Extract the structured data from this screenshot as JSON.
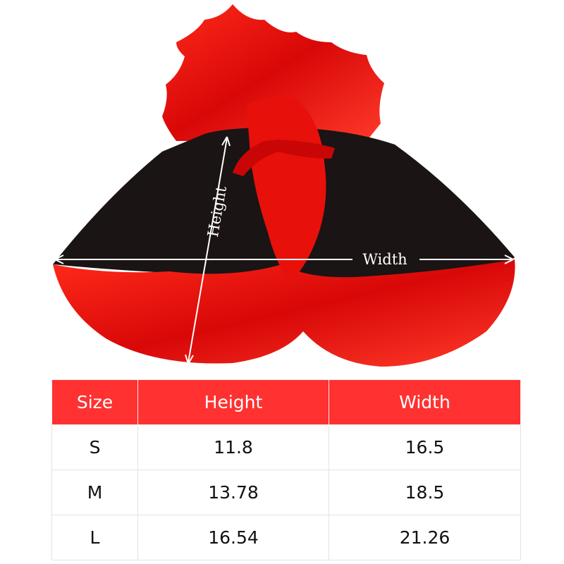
{
  "image": {
    "labels": {
      "height": "Height",
      "width": "Width"
    },
    "colors": {
      "red": "#e00a0a",
      "black": "#1a1414"
    }
  },
  "size_chart": {
    "header_color": "#ff3131",
    "headers": [
      "Size",
      "Height",
      "Width"
    ],
    "rows": [
      [
        "S",
        "11.8",
        "16.5"
      ],
      [
        "M",
        "13.78",
        "18.5"
      ],
      [
        "L",
        "16.54",
        "21.26"
      ]
    ]
  }
}
